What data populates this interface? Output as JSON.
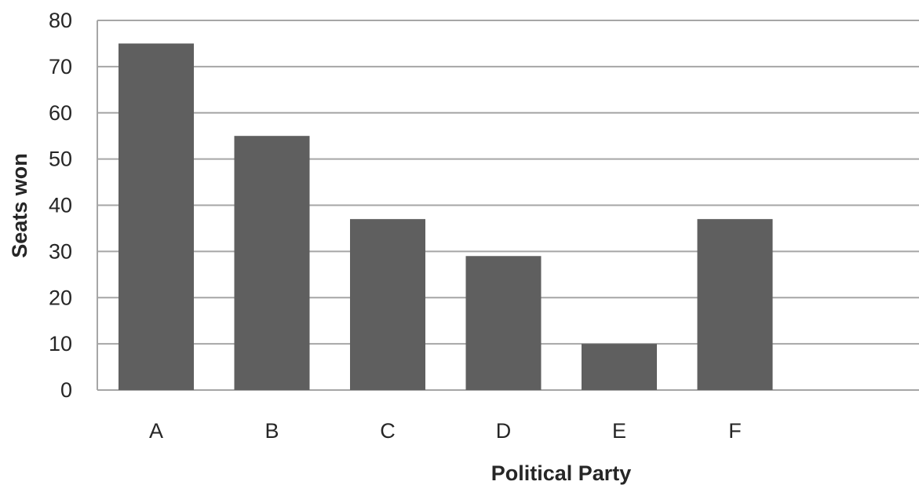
{
  "chart_data": {
    "type": "bar",
    "title": "",
    "xlabel": "Political Party",
    "ylabel": "Seats won",
    "categories": [
      "A",
      "B",
      "C",
      "D",
      "E",
      "F"
    ],
    "values": [
      75,
      55,
      37,
      29,
      10,
      37
    ],
    "ylim": [
      0,
      80
    ],
    "yticks": [
      "0",
      "10",
      "20",
      "30",
      "40",
      "50",
      "60",
      "70",
      "80"
    ],
    "grid": true,
    "legend": "none",
    "colors": {
      "bar": "#5f5f5f",
      "grid": "#a6a6a6",
      "text": "#262626"
    }
  }
}
